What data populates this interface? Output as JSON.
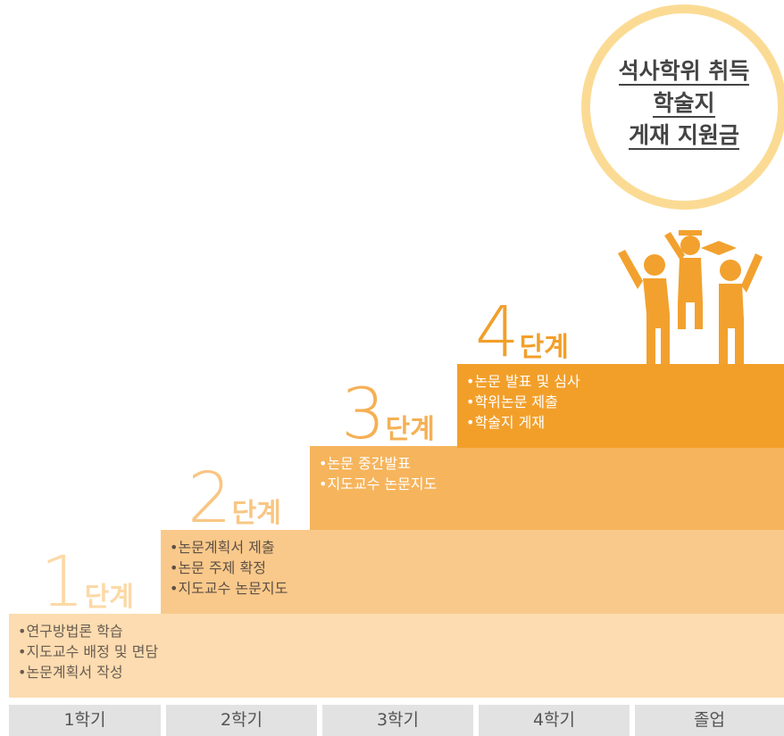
{
  "goal": {
    "lines": [
      "석사학위 취득",
      "학술지",
      "게재 지원금"
    ]
  },
  "steps": [
    {
      "number": "1",
      "label": "단계",
      "items": [
        "•연구방법론 학습",
        "•지도교수 배정 및 면담",
        "•논문계획서 작성"
      ]
    },
    {
      "number": "2",
      "label": "단계",
      "items": [
        "•논문계획서 제출",
        "•논문 주제 확정",
        "•지도교수 논문지도"
      ]
    },
    {
      "number": "3",
      "label": "단계",
      "items": [
        "•논문 중간발표",
        "•지도교수 논문지도"
      ]
    },
    {
      "number": "4",
      "label": "단계",
      "items": [
        "•논문 발표 및 심사",
        "•학위논문 제출",
        "•학술지 게재"
      ]
    }
  ],
  "semesters": [
    "1학기",
    "2학기",
    "3학기",
    "4학기",
    "졸업"
  ]
}
